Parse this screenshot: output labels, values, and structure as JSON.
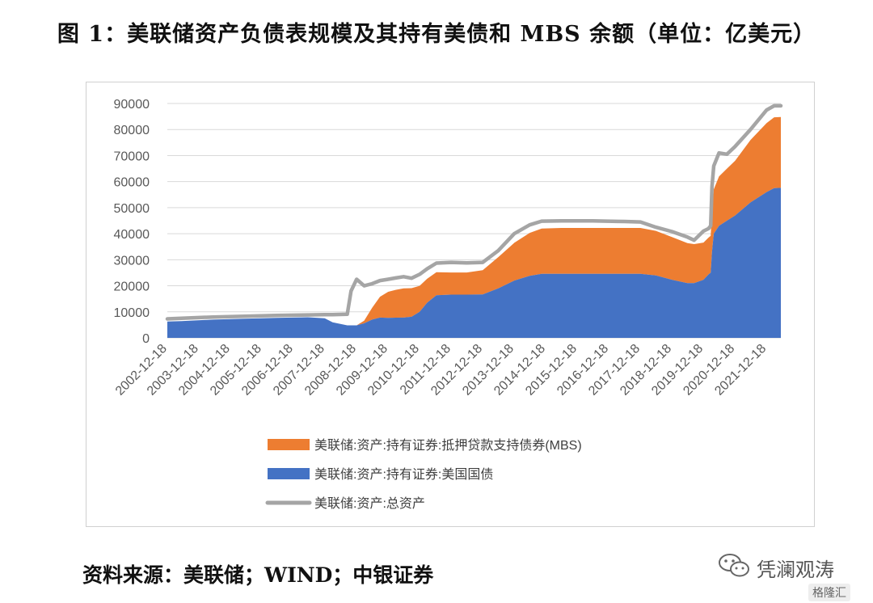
{
  "title": "图 1：美联储资产负债表规模及其持有美债和 MBS 余额（单位：亿美元）",
  "source": "资料来源：美联储；WIND；中银证券",
  "watermark": {
    "brand": "凭澜观涛",
    "badge": "格隆汇",
    "icon": "wechat-icon"
  },
  "colors": {
    "mbs": "#ED7D31",
    "treasury": "#4472C4",
    "total": "#A5A5A5",
    "grid": "#D9D9D9",
    "axis_text": "#595959"
  },
  "chart_data": {
    "type": "area",
    "title": "",
    "ylim": [
      0,
      90000
    ],
    "yticks": [
      0,
      10000,
      20000,
      30000,
      40000,
      50000,
      60000,
      70000,
      80000,
      90000
    ],
    "ytick_labels": [
      "0",
      "10000",
      "20000",
      "30000",
      "40000",
      "50000",
      "60000",
      "70000",
      "80000",
      "90000"
    ],
    "xlim": [
      "2002-12-18",
      "2022-06-01"
    ],
    "xticks": [
      "2002-12-18",
      "2003-12-18",
      "2004-12-18",
      "2005-12-18",
      "2006-12-18",
      "2007-12-18",
      "2008-12-18",
      "2009-12-18",
      "2010-12-18",
      "2011-12-18",
      "2012-12-18",
      "2013-12-18",
      "2014-12-18",
      "2015-12-18",
      "2016-12-18",
      "2017-12-18",
      "2018-12-18",
      "2019-12-18",
      "2020-12-18",
      "2021-12-18"
    ],
    "legend_position": "bottom",
    "grid": true,
    "x": [
      "2002-12-18",
      "2003-06-01",
      "2004-06-01",
      "2005-06-01",
      "2006-06-01",
      "2007-06-01",
      "2007-12-15",
      "2008-03-15",
      "2008-09-01",
      "2008-10-15",
      "2008-12-18",
      "2009-03-15",
      "2009-06-15",
      "2009-09-15",
      "2009-12-18",
      "2010-03-15",
      "2010-06-15",
      "2010-09-15",
      "2010-12-18",
      "2011-03-15",
      "2011-06-30",
      "2011-12-18",
      "2012-06-15",
      "2012-12-18",
      "2013-06-15",
      "2013-12-18",
      "2014-06-15",
      "2014-10-31",
      "2015-06-15",
      "2016-06-15",
      "2017-06-15",
      "2017-12-18",
      "2018-06-15",
      "2018-12-18",
      "2019-06-15",
      "2019-09-01",
      "2019-12-18",
      "2020-02-15",
      "2020-03-10",
      "2020-03-25",
      "2020-04-15",
      "2020-06-15",
      "2020-09-15",
      "2020-12-18",
      "2021-06-15",
      "2021-12-18",
      "2022-03-15",
      "2022-06-01"
    ],
    "series": [
      {
        "name": "美联储:资产:持有证券:抵押贷款支持债券(MBS)",
        "values": [
          0,
          0,
          0,
          0,
          0,
          0,
          0,
          0,
          0,
          0,
          0,
          1000,
          4500,
          8000,
          10000,
          10700,
          11200,
          11000,
          10000,
          9200,
          8800,
          8500,
          8500,
          9300,
          12000,
          14500,
          16500,
          17400,
          17600,
          17600,
          17600,
          17600,
          17100,
          16400,
          15400,
          15000,
          14300,
          14100,
          14200,
          15500,
          17000,
          19000,
          20000,
          21000,
          24000,
          26500,
          27200,
          27200
        ]
      },
      {
        "name": "美联储:资产:持有证券:美国国债",
        "values": [
          6300,
          6450,
          7000,
          7400,
          7700,
          7900,
          7500,
          6000,
          4800,
          4800,
          4800,
          5600,
          7000,
          7800,
          7700,
          7750,
          7800,
          8100,
          10000,
          13500,
          16400,
          16600,
          16600,
          16700,
          19000,
          22000,
          23800,
          24600,
          24600,
          24600,
          24600,
          24600,
          24000,
          22300,
          21000,
          21000,
          22300,
          24400,
          25000,
          33000,
          40000,
          43000,
          45000,
          47000,
          52000,
          56000,
          57500,
          57600
        ]
      },
      {
        "name": "美联储:资产:总资产",
        "values": [
          7300,
          7500,
          8000,
          8300,
          8600,
          8800,
          8900,
          8900,
          9100,
          18000,
          22500,
          20000,
          20800,
          22000,
          22500,
          23000,
          23500,
          22900,
          24400,
          26500,
          28700,
          29000,
          28800,
          29000,
          33500,
          40000,
          43400,
          44800,
          44900,
          44900,
          44700,
          44500,
          42500,
          40800,
          38700,
          37500,
          41000,
          42000,
          43000,
          58000,
          66000,
          71000,
          70500,
          73500,
          80000,
          87500,
          89100,
          89100
        ]
      }
    ]
  }
}
